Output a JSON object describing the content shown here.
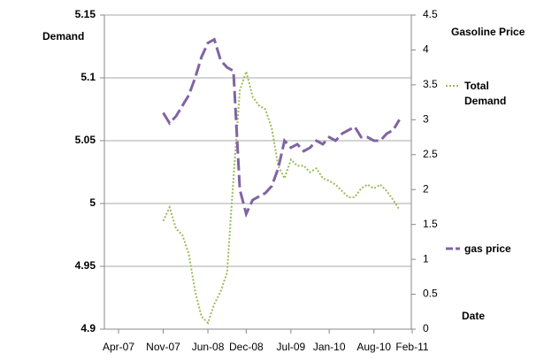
{
  "chart_data": {
    "type": "line",
    "y_label": "Demand",
    "y2_label": "Gasoline Price",
    "x_label": "Date",
    "x": [
      "Nov-07",
      "Dec-07",
      "Jan-08",
      "Feb-08",
      "Mar-08",
      "Apr-08",
      "May-08",
      "Jun-08",
      "Jul-08",
      "Aug-08",
      "Sep-08",
      "Oct-08",
      "Nov-08",
      "Dec-08",
      "Jan-09",
      "Feb-09",
      "Mar-09",
      "Apr-09",
      "May-09",
      "Jun-09",
      "Jul-09",
      "Aug-09",
      "Sep-09",
      "Oct-09",
      "Nov-09",
      "Dec-09",
      "Jan-10",
      "Feb-10",
      "Mar-10",
      "Apr-10",
      "May-10",
      "Jun-10",
      "Jul-10",
      "Aug-10",
      "Sep-10",
      "Oct-10",
      "Nov-10",
      "Dec-10"
    ],
    "series": [
      {
        "name": "Total Demand",
        "color": "#9bbb59",
        "axis": "y",
        "dash": "dotted",
        "values": [
          4.986,
          4.997,
          4.98,
          4.975,
          4.96,
          4.93,
          4.91,
          4.905,
          4.92,
          4.93,
          4.945,
          5.02,
          5.09,
          5.105,
          5.085,
          5.078,
          5.075,
          5.06,
          5.03,
          5.02,
          5.035,
          5.03,
          5.03,
          5.025,
          5.028,
          5.02,
          5.018,
          5.015,
          5.01,
          5.005,
          5.005,
          5.012,
          5.015,
          5.012,
          5.015,
          5.01,
          5.003,
          4.995
        ]
      },
      {
        "name": "gas price",
        "color": "#8064a2",
        "axis": "y2",
        "dash": "dashed",
        "values": [
          3.1,
          2.95,
          3.05,
          3.2,
          3.35,
          3.6,
          3.9,
          4.1,
          4.15,
          3.85,
          3.75,
          3.7,
          2.0,
          1.65,
          1.85,
          1.9,
          1.95,
          2.05,
          2.3,
          2.7,
          2.6,
          2.65,
          2.55,
          2.6,
          2.7,
          2.65,
          2.75,
          2.7,
          2.8,
          2.85,
          2.9,
          2.75,
          2.75,
          2.7,
          2.7,
          2.8,
          2.85,
          3.0
        ]
      }
    ],
    "xlim": [
      "Apr-07",
      "Feb-11"
    ],
    "xticks": [
      "Apr-07",
      "Nov-07",
      "Jun-08",
      "Dec-08",
      "Jul-09",
      "Jan-10",
      "Aug-10",
      "Feb-11"
    ],
    "ylim": [
      4.9,
      5.15
    ],
    "yticks": [
      4.9,
      4.95,
      5,
      5.05,
      5.1,
      5.15
    ],
    "y2lim": [
      0,
      4.5
    ],
    "y2ticks": [
      0,
      0.5,
      1,
      1.5,
      2,
      2.5,
      3,
      3.5,
      4,
      4.5
    ],
    "grid": true,
    "legend": "right"
  }
}
